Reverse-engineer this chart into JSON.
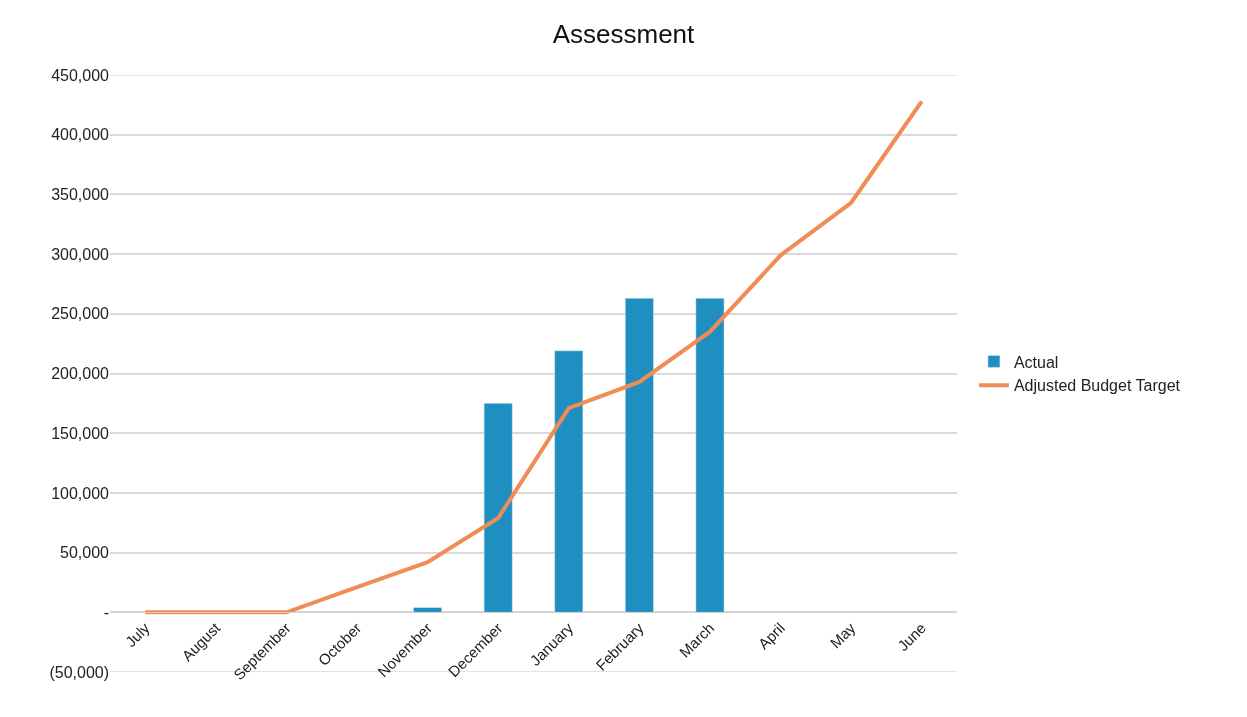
{
  "chart_data": {
    "type": "bar",
    "title": "Assessment",
    "categories": [
      "July",
      "August",
      "September",
      "October",
      "November",
      "December",
      "January",
      "February",
      "March",
      "April",
      "May",
      "June"
    ],
    "series": [
      {
        "name": "Actual",
        "color": "#1f8fc1",
        "values": [
          null,
          null,
          null,
          null,
          4000,
          175000,
          219000,
          263000,
          263000,
          null,
          null,
          null
        ]
      },
      {
        "name": "Adjusted Budget Target",
        "type": "line",
        "color": "#f08c55",
        "values": [
          0,
          0,
          0,
          21000,
          42000,
          79000,
          171000,
          193000,
          235000,
          299000,
          343000,
          428000
        ]
      }
    ],
    "ylim": [
      -50000,
      450000
    ],
    "yticks": [
      {
        "value": -50000,
        "label": "(50,000)"
      },
      {
        "value": 0,
        "label": "-"
      },
      {
        "value": 50000,
        "label": "50,000"
      },
      {
        "value": 100000,
        "label": "100,000"
      },
      {
        "value": 150000,
        "label": "150,000"
      },
      {
        "value": 200000,
        "label": "200,000"
      },
      {
        "value": 250000,
        "label": "250,000"
      },
      {
        "value": 300000,
        "label": "300,000"
      },
      {
        "value": 350000,
        "label": "350,000"
      },
      {
        "value": 400000,
        "label": "400,000"
      },
      {
        "value": 450000,
        "label": "450,000"
      }
    ],
    "grid": "y",
    "legend": "right",
    "marker": "none",
    "line_style": "solid"
  }
}
